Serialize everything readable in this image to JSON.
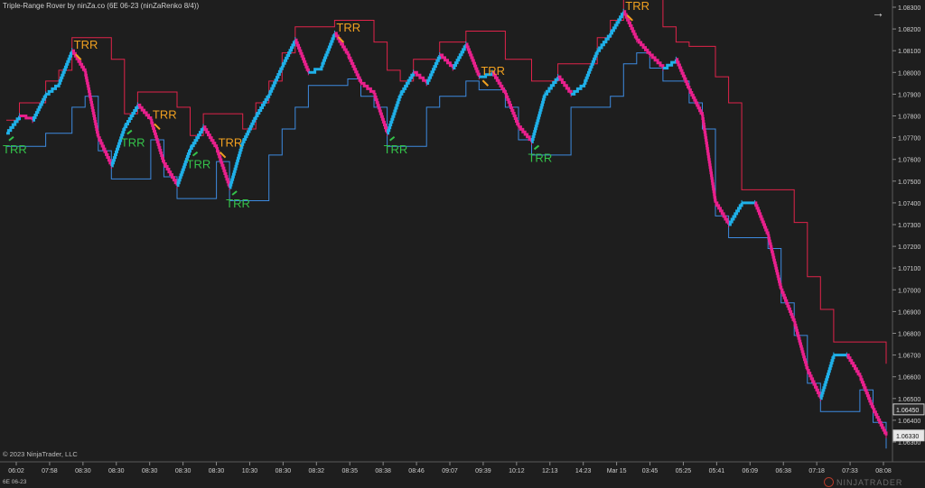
{
  "window": {
    "title": "Triple-Range Rover by ninZa.co (6E 06-23 (ninZaRenko 8/4))",
    "copyright": "© 2023 NinjaTrader, LLC",
    "instrument": "6E 06-23",
    "brand": "NINJATRADER"
  },
  "icons": {
    "expand": "arrow-right-icon",
    "brand_logo": "ninjatrader-logo-icon"
  },
  "colors": {
    "background": "#1e1e1e",
    "up": "#1fb0e8",
    "down": "#e8208c",
    "signal_sell": "#f0a020",
    "signal_buy": "#34c24a",
    "band_lower": "#3d8ae0",
    "band_upper": "#e0234a"
  },
  "chart_data": {
    "type": "line",
    "title": "",
    "xlabel": "",
    "ylabel": "",
    "ylim": [
      1.063,
      1.083
    ],
    "y_ticks": [
      "1.08300",
      "1.08200",
      "1.08100",
      "1.08000",
      "1.07900",
      "1.07800",
      "1.07700",
      "1.07600",
      "1.07500",
      "1.07400",
      "1.07300",
      "1.07200",
      "1.07100",
      "1.07000",
      "1.06900",
      "1.06800",
      "1.06700",
      "1.06600",
      "1.06500",
      "1.06400",
      "1.06300"
    ],
    "x_ticks": [
      "06:02",
      "07:58",
      "08:30",
      "08:30",
      "08:30",
      "08:30",
      "08:30",
      "10:30",
      "08:30",
      "08:32",
      "08:35",
      "08:38",
      "08:46",
      "09:07",
      "09:39",
      "10:12",
      "12:13",
      "14:23",
      "Mar 15",
      "03:45",
      "05:25",
      "05:41",
      "06:09",
      "06:38",
      "07:18",
      "07:33",
      "08:08"
    ],
    "price_markers": [
      {
        "label": "1.06450",
        "value": 1.0645,
        "style": "last"
      },
      {
        "label": "1.06330",
        "value": 1.0633,
        "style": "current"
      }
    ],
    "series": [
      {
        "name": "",
        "role": "renko-path",
        "values": [
          1.0772,
          1.078,
          1.0778,
          1.079,
          1.0795,
          1.081,
          1.08,
          1.077,
          1.0757,
          1.0775,
          1.0785,
          1.0778,
          1.0758,
          1.0748,
          1.0765,
          1.0775,
          1.0765,
          1.0747,
          1.0768,
          1.078,
          1.079,
          1.0803,
          1.0815,
          1.08,
          1.0803,
          1.0818,
          1.0808,
          1.0795,
          1.079,
          1.0772,
          1.079,
          1.08,
          1.0795,
          1.0808,
          1.0802,
          1.0813,
          1.0798,
          1.08,
          1.079,
          1.0775,
          1.0768,
          1.079,
          1.0798,
          1.079,
          1.0795,
          1.081,
          1.0818,
          1.0828,
          1.0815,
          1.0808,
          1.0802,
          1.0806,
          1.0792,
          1.078,
          1.074,
          1.073,
          1.074,
          1.074,
          1.0725,
          1.07,
          1.0685,
          1.0663,
          1.065,
          1.067,
          1.067,
          1.066,
          1.0645,
          1.0633
        ]
      }
    ],
    "signals": [
      {
        "label": "TRR",
        "type": "buy",
        "index": 0
      },
      {
        "label": "TRR",
        "type": "sell",
        "index": 5
      },
      {
        "label": "TRR",
        "type": "buy",
        "index": 9
      },
      {
        "label": "TRR",
        "type": "sell",
        "index": 11
      },
      {
        "label": "TRR",
        "type": "buy",
        "index": 14
      },
      {
        "label": "TRR",
        "type": "sell",
        "index": 16
      },
      {
        "label": "TRR",
        "type": "buy",
        "index": 17
      },
      {
        "label": "TRR",
        "type": "sell",
        "index": 25
      },
      {
        "label": "TRR",
        "type": "buy",
        "index": 29
      },
      {
        "label": "TRR",
        "type": "sell",
        "index": 36
      },
      {
        "label": "TRR",
        "type": "buy",
        "index": 40
      },
      {
        "label": "TRR",
        "type": "sell",
        "index": 47
      }
    ]
  }
}
